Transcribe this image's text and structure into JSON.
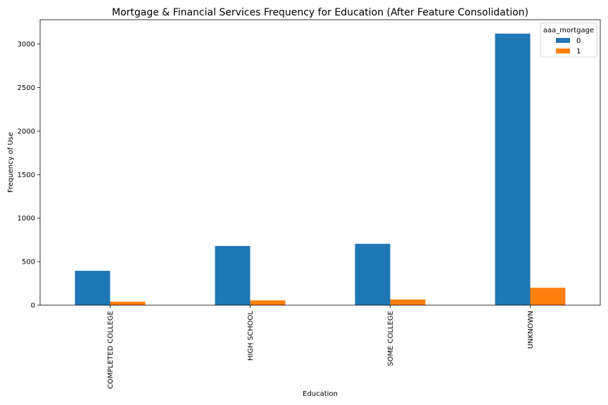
{
  "chart_data": {
    "type": "bar",
    "title": "Mortgage & Financial Services Frequency for Education  (After Feature Consolidation)",
    "xlabel": "Education",
    "ylabel": "Frequency of Use",
    "categories": [
      "COMPLETED COLLEGE",
      "HIGH SCHOOL",
      "SOME COLLEGE",
      "UNKNOWN"
    ],
    "series": [
      {
        "name": "0",
        "values": [
          395,
          680,
          705,
          3120
        ],
        "color": "#1f77b4"
      },
      {
        "name": "1",
        "values": [
          40,
          55,
          65,
          200
        ],
        "color": "#ff7f0e"
      }
    ],
    "ylim": [
      0,
      3280
    ],
    "yticks": [
      0,
      500,
      1000,
      1500,
      2000,
      2500,
      3000
    ],
    "grid": false,
    "legend": {
      "title": "aaa_mortgage",
      "position": "top-right"
    }
  }
}
